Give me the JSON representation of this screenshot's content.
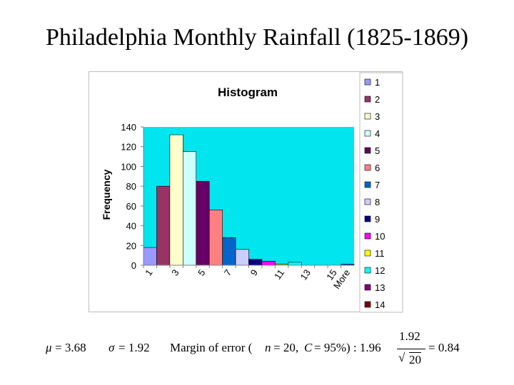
{
  "slide": {
    "title": "Philadelphia Monthly Rainfall (1825-1869)"
  },
  "chart_data": {
    "type": "bar",
    "title": "Histogram",
    "xlabel": "",
    "ylabel": "Frequency",
    "categories": [
      "1",
      "2",
      "3",
      "4",
      "5",
      "6",
      "7",
      "8",
      "9",
      "10",
      "11",
      "12",
      "13",
      "14",
      "15",
      "More"
    ],
    "x_tick_labels": [
      "1",
      "3",
      "5",
      "7",
      "9",
      "11",
      "13",
      "15",
      "More"
    ],
    "values": [
      18,
      80,
      132,
      115,
      85,
      56,
      28,
      16,
      6,
      4,
      1,
      3,
      0,
      0,
      0,
      1
    ],
    "ylim": [
      0,
      140
    ],
    "y_ticks": [
      0,
      20,
      40,
      60,
      80,
      100,
      120,
      140
    ],
    "grid": false,
    "plot_background": "#00E5EE",
    "bar_colors": [
      "#9999FF",
      "#993366",
      "#FFFFCC",
      "#CCFFFF",
      "#660066",
      "#FF8080",
      "#0066CC",
      "#CCCCFF",
      "#000080",
      "#FF00FF",
      "#FFFF00",
      "#00FFFF",
      "#800080",
      "#800000",
      "#008080",
      "#0000FF"
    ],
    "legend": {
      "placement": "right",
      "entries": [
        "1",
        "2",
        "3",
        "4",
        "5",
        "6",
        "7",
        "8",
        "9",
        "10",
        "11",
        "12",
        "13",
        "14"
      ]
    }
  },
  "formula": {
    "mu_symbol": "μ",
    "mu_value": "= 3.68",
    "sigma_symbol": "σ",
    "sigma_value": "= 1.92",
    "margin_label": "Margin of error (",
    "n_symbol": "n",
    "n_value": "= 20,",
    "c_symbol": "C",
    "c_value": "= 95%) : 1.96",
    "fraction_numerator": "1.92",
    "fraction_denominator": "20",
    "result": "= 0.84"
  }
}
